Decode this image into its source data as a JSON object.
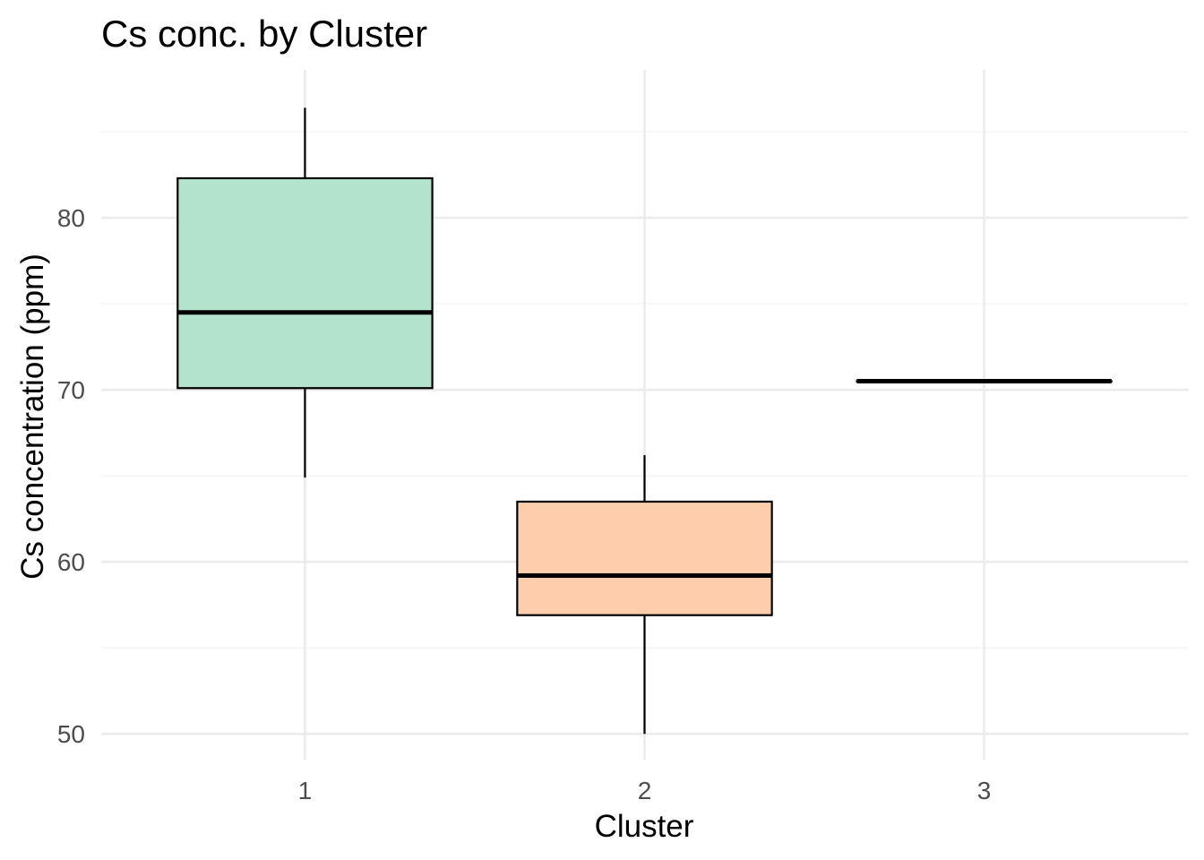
{
  "chart_data": {
    "type": "boxplot",
    "title": "Cs conc. by Cluster",
    "xlabel": "Cluster",
    "ylabel": "Cs concentration (ppm)",
    "categories": [
      "1",
      "2",
      "3"
    ],
    "y_ticks": [
      50,
      60,
      70,
      80
    ],
    "ylim": [
      48.5,
      88.6
    ],
    "grid": true,
    "legend": "none",
    "boxes": [
      {
        "category": "1",
        "min": 64.9,
        "q1": 70.1,
        "median": 74.5,
        "q3": 82.3,
        "max": 86.4,
        "color": "#b3e2cd"
      },
      {
        "category": "2",
        "min": 50.0,
        "q1": 56.9,
        "median": 59.2,
        "q3": 63.5,
        "max": 66.2,
        "color": "#fdcdac"
      },
      {
        "category": "3",
        "min": 70.5,
        "q1": 70.5,
        "median": 70.5,
        "q3": 70.5,
        "max": 70.5,
        "color": "#cbd5e8"
      }
    ]
  }
}
